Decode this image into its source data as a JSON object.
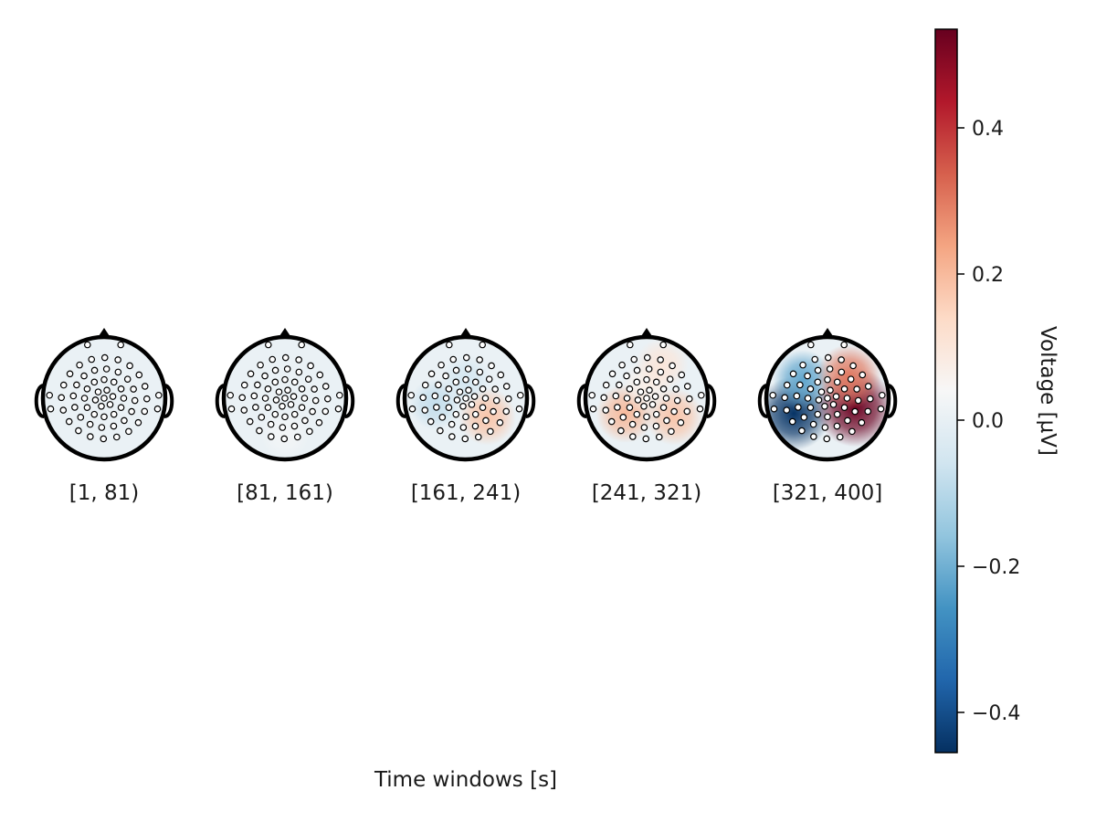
{
  "chart_data": {
    "type": "heatmap",
    "subtype": "topoplot-series",
    "xlabel": "Time windows [s]",
    "colorbar": {
      "label": "Voltage [µV]",
      "range": [
        -0.455,
        0.535
      ],
      "ticks": [
        -0.4,
        -0.2,
        0.0,
        0.2,
        0.4
      ],
      "tick_labels": [
        "−0.4",
        "−0.2",
        "0.0",
        "0.2",
        "0.4"
      ],
      "colormap": "RdBu_r",
      "colors": [
        "#053061",
        "#2166ac",
        "#4393c3",
        "#92c5de",
        "#d1e5f0",
        "#f7f7f7",
        "#fddbc7",
        "#f4a582",
        "#d6604d",
        "#b2182b",
        "#67001f"
      ]
    },
    "windows": [
      {
        "label": "[1, 81)",
        "sources": []
      },
      {
        "label": "[81, 161)",
        "sources": [
          {
            "x": 0.0,
            "y": -0.6,
            "v": 0.03
          }
        ]
      },
      {
        "label": "[161, 241)",
        "sources": [
          {
            "x": 0.35,
            "y": -0.3,
            "v": 0.18
          },
          {
            "x": -0.5,
            "y": -0.1,
            "v": -0.08
          },
          {
            "x": 0.0,
            "y": 0.3,
            "v": -0.05
          }
        ]
      },
      {
        "label": "[241, 321)",
        "sources": [
          {
            "x": -0.35,
            "y": -0.25,
            "v": 0.2
          },
          {
            "x": 0.45,
            "y": -0.3,
            "v": 0.18
          },
          {
            "x": 0.0,
            "y": 0.2,
            "v": 0.07
          },
          {
            "x": 0.25,
            "y": 0.55,
            "v": 0.1
          }
        ]
      },
      {
        "label": "[321, 400]",
        "sources": [
          {
            "x": -0.55,
            "y": -0.25,
            "v": -0.45
          },
          {
            "x": -0.4,
            "y": 0.3,
            "v": -0.22
          },
          {
            "x": 0.45,
            "y": -0.15,
            "v": 0.53
          },
          {
            "x": 0.35,
            "y": 0.35,
            "v": 0.3
          }
        ]
      }
    ]
  }
}
